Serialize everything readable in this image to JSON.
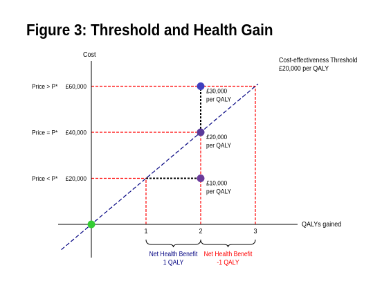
{
  "title": "Figure 3: Threshold and Health Gain",
  "chart_data": {
    "type": "line",
    "ylabel": "Cost",
    "xlabel": "QALYs gained",
    "x_ticks": [
      "1",
      "2",
      "3"
    ],
    "y_ticks": [
      {
        "value": 60000,
        "label": "£60,000",
        "price_label": "Price > P*"
      },
      {
        "value": 40000,
        "label": "£40,000",
        "price_label": "Price = P*"
      },
      {
        "value": 20000,
        "label": "£20,000",
        "price_label": "Price < P*"
      }
    ],
    "threshold": {
      "label_line1": "Cost-effectiveness Threshold",
      "label_line2": "£20,000 per QALY",
      "slope": 20000,
      "x": [
        -0.55,
        3.05
      ],
      "color": "#000080"
    },
    "points": [
      {
        "x": 2,
        "y": 60000,
        "color": "#3f3fbf",
        "label_line1": "£30,000",
        "label_line2": "per QALY"
      },
      {
        "x": 2,
        "y": 40000,
        "color": "#5a3a9a",
        "label_line1": "£20,000",
        "label_line2": "per QALY"
      },
      {
        "x": 2,
        "y": 20000,
        "color": "#6a3a9a",
        "label_line1": "£10,000",
        "label_line2": "per QALY"
      },
      {
        "x": 0,
        "y": 0,
        "color": "#33cc33"
      }
    ],
    "reference_lines": [
      {
        "from": [
          0,
          60000
        ],
        "to": [
          3,
          60000
        ],
        "color": "#ff0000"
      },
      {
        "from": [
          0,
          40000
        ],
        "to": [
          2,
          40000
        ],
        "color": "#ff0000"
      },
      {
        "from": [
          0,
          20000
        ],
        "to": [
          1,
          20000
        ],
        "color": "#ff0000"
      },
      {
        "from": [
          1,
          20000
        ],
        "to": [
          2,
          20000
        ],
        "color": "#000000"
      },
      {
        "from": [
          2,
          40000
        ],
        "to": [
          2,
          60000
        ],
        "color": "#000000"
      },
      {
        "from": [
          2,
          20000
        ],
        "to": [
          2,
          40000
        ],
        "color": "#ff0000"
      },
      {
        "from": [
          1,
          0
        ],
        "to": [
          1,
          20000
        ],
        "color": "#ff0000"
      },
      {
        "from": [
          2,
          0
        ],
        "to": [
          2,
          20000
        ],
        "color": "#ff0000"
      },
      {
        "from": [
          3,
          0
        ],
        "to": [
          3,
          60000
        ],
        "color": "#ff0000"
      }
    ],
    "braces": [
      {
        "from": 1,
        "to": 2,
        "label_line1": "Net Health Benefit",
        "label_line2": "1 QALY",
        "color": "#000080"
      },
      {
        "from": 2,
        "to": 3,
        "label_line1": "Net Health Benefit",
        "label_line2": "-1 QALY",
        "color": "#ff0000"
      }
    ]
  }
}
